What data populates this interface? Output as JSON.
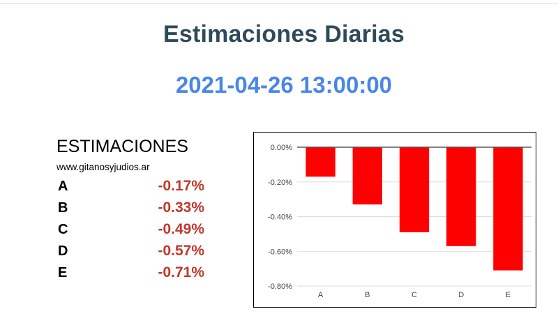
{
  "page": {
    "title": "Estimaciones Diarias",
    "datetime": "2021-04-26 13:00:00"
  },
  "estimaciones": {
    "heading": "ESTIMACIONES",
    "site": "www.gitanosyjudios.ar",
    "rows": [
      {
        "label": "A",
        "value": "-0.17%"
      },
      {
        "label": "B",
        "value": "-0.33%"
      },
      {
        "label": "C",
        "value": "-0.49%"
      },
      {
        "label": "D",
        "value": "-0.57%"
      },
      {
        "label": "E",
        "value": "-0.71%"
      }
    ],
    "value_color": "#c0392b"
  },
  "colors": {
    "title": "#2f4a5a",
    "datetime": "#4a86e8",
    "bar": "#ff0000"
  },
  "chart_data": {
    "type": "bar",
    "categories": [
      "A",
      "B",
      "C",
      "D",
      "E"
    ],
    "values": [
      -0.17,
      -0.33,
      -0.49,
      -0.57,
      -0.71
    ],
    "unit": "%",
    "ylim": [
      -0.8,
      0
    ],
    "yticks": [
      0,
      -0.2,
      -0.4,
      -0.6,
      -0.8
    ],
    "ytick_labels": [
      "0.00%",
      "-0.20%",
      "-0.40%",
      "-0.60%",
      "-0.80%"
    ],
    "grid": true,
    "legend": "none",
    "bar_color": "#ff0000"
  }
}
